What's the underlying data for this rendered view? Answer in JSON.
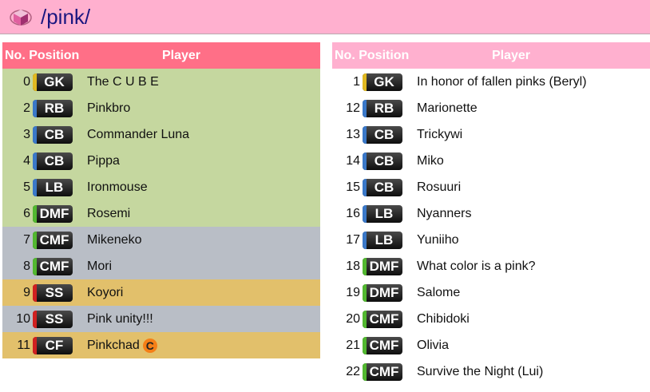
{
  "header": {
    "title": "/pink/",
    "logo": "pink-cube-logo"
  },
  "columns": {
    "no_position": "No. Position",
    "player": "Player"
  },
  "colors": {
    "left_header": "#ff6f87",
    "right_header": "#ffb0cf",
    "green": "#c5d79f",
    "gray": "#b9bec6",
    "orange": "#e2c06b",
    "GK": "#e0b820",
    "DF": "#3a78c8",
    "MF": "#52b830",
    "FW": "#d02020"
  },
  "left": [
    {
      "no": "0",
      "pos": "GK",
      "type": "GK",
      "name": "The C U B E",
      "bg": "green"
    },
    {
      "no": "2",
      "pos": "RB",
      "type": "DF",
      "name": "Pinkbro",
      "bg": "green"
    },
    {
      "no": "3",
      "pos": "CB",
      "type": "DF",
      "name": "Commander Luna",
      "bg": "green"
    },
    {
      "no": "4",
      "pos": "CB",
      "type": "DF",
      "name": "Pippa",
      "bg": "green"
    },
    {
      "no": "5",
      "pos": "LB",
      "type": "DF",
      "name": "Ironmouse",
      "bg": "green"
    },
    {
      "no": "6",
      "pos": "DMF",
      "type": "MF",
      "name": "Rosemi",
      "bg": "green"
    },
    {
      "no": "7",
      "pos": "CMF",
      "type": "MF",
      "name": "Mikeneko",
      "bg": "gray"
    },
    {
      "no": "8",
      "pos": "CMF",
      "type": "MF",
      "name": "Mori",
      "bg": "gray"
    },
    {
      "no": "9",
      "pos": "SS",
      "type": "FW",
      "name": "Koyori",
      "bg": "orange"
    },
    {
      "no": "10",
      "pos": "SS",
      "type": "FW",
      "name": "Pink unity!!!",
      "bg": "gray"
    },
    {
      "no": "11",
      "pos": "CF",
      "type": "FW",
      "name": "Pinkchad",
      "bg": "orange",
      "captain": "C"
    }
  ],
  "right": [
    {
      "no": "1",
      "pos": "GK",
      "type": "GK",
      "name": "In honor of fallen pinks (Beryl)"
    },
    {
      "no": "12",
      "pos": "RB",
      "type": "DF",
      "name": "Marionette"
    },
    {
      "no": "13",
      "pos": "CB",
      "type": "DF",
      "name": "Trickywi"
    },
    {
      "no": "14",
      "pos": "CB",
      "type": "DF",
      "name": "Miko"
    },
    {
      "no": "15",
      "pos": "CB",
      "type": "DF",
      "name": "Rosuuri"
    },
    {
      "no": "16",
      "pos": "LB",
      "type": "DF",
      "name": "Nyanners"
    },
    {
      "no": "17",
      "pos": "LB",
      "type": "DF",
      "name": "Yuniiho"
    },
    {
      "no": "18",
      "pos": "DMF",
      "type": "MF",
      "name": "What color is a pink?"
    },
    {
      "no": "19",
      "pos": "DMF",
      "type": "MF",
      "name": "Salome"
    },
    {
      "no": "20",
      "pos": "CMF",
      "type": "MF",
      "name": "Chibidoki"
    },
    {
      "no": "21",
      "pos": "CMF",
      "type": "MF",
      "name": "Olivia"
    },
    {
      "no": "22",
      "pos": "CMF",
      "type": "MF",
      "name": "Survive the Night (Lui)"
    }
  ]
}
